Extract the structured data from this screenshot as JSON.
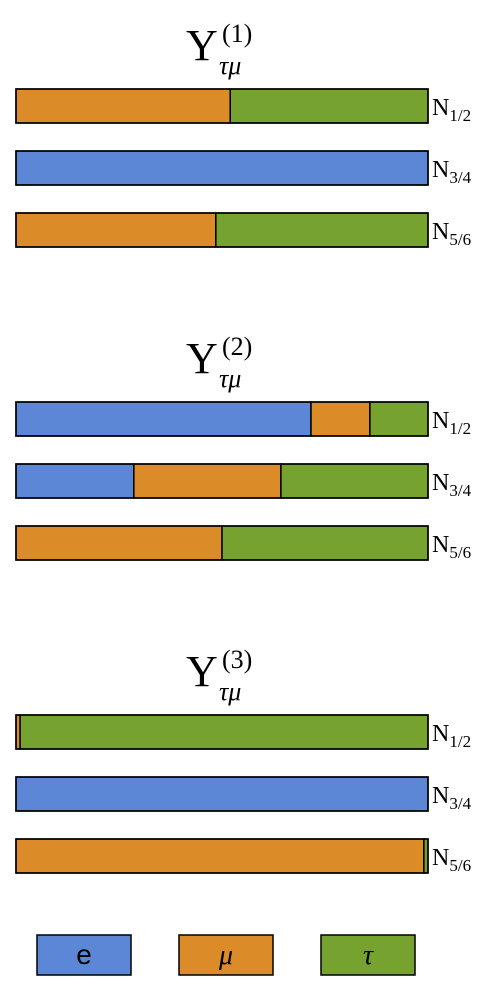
{
  "chart_data": [
    {
      "type": "bar",
      "orientation": "horizontal",
      "stacked": true,
      "title": {
        "base": "Y",
        "sub": "τμ",
        "sup": "(1)"
      },
      "categories": [
        {
          "base": "N",
          "sub": "1/2"
        },
        {
          "base": "N",
          "sub": "3/4"
        },
        {
          "base": "N",
          "sub": "5/6"
        }
      ],
      "xlim": [
        0,
        1
      ],
      "series": [
        {
          "values": [
            0,
            1,
            0
          ]
        },
        {
          "values": [
            0.52,
            0,
            0.485
          ]
        },
        {
          "values": [
            0.48,
            0,
            0.515
          ]
        }
      ]
    },
    {
      "type": "bar",
      "orientation": "horizontal",
      "stacked": true,
      "title": {
        "base": "Y",
        "sub": "τμ",
        "sup": "(2)"
      },
      "categories": [
        {
          "base": "N",
          "sub": "1/2"
        },
        {
          "base": "N",
          "sub": "3/4"
        },
        {
          "base": "N",
          "sub": "5/6"
        }
      ],
      "xlim": [
        0,
        1
      ],
      "series": [
        {
          "values": [
            0.716,
            0.286,
            0
          ]
        },
        {
          "values": [
            0.143,
            0.357,
            0.5
          ]
        },
        {
          "values": [
            0.141,
            0.357,
            0.5
          ]
        }
      ]
    },
    {
      "type": "bar",
      "orientation": "horizontal",
      "stacked": true,
      "title": {
        "base": "Y",
        "sub": "τμ",
        "sup": "(3)"
      },
      "categories": [
        {
          "base": "N",
          "sub": "1/2"
        },
        {
          "base": "N",
          "sub": "3/4"
        },
        {
          "base": "N",
          "sub": "5/6"
        }
      ],
      "xlim": [
        0,
        1
      ],
      "series": [
        {
          "values": [
            0,
            1,
            0
          ]
        },
        {
          "values": [
            0.01,
            0,
            0.99
          ]
        },
        {
          "values": [
            0.99,
            0,
            0.01
          ]
        }
      ]
    }
  ],
  "legend": [
    {
      "name": "e",
      "color": "#5b87d6"
    },
    {
      "name": "μ",
      "color": "#db8c28"
    },
    {
      "name": "τ",
      "color": "#76a22f"
    }
  ]
}
